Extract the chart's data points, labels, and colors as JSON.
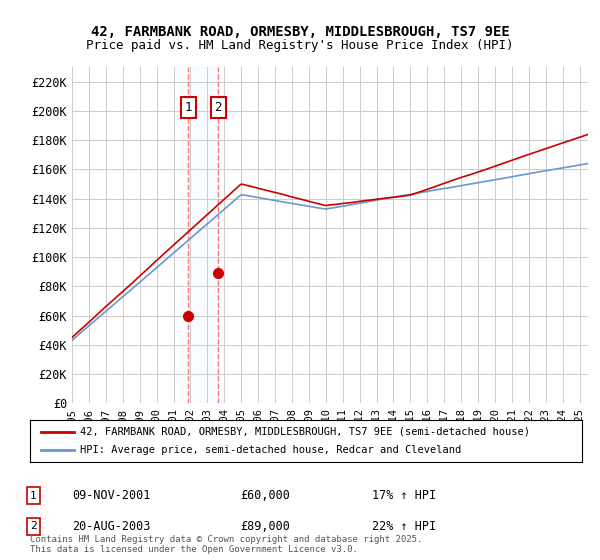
{
  "title_line1": "42, FARMBANK ROAD, ORMESBY, MIDDLESBROUGH, TS7 9EE",
  "title_line2": "Price paid vs. HM Land Registry's House Price Index (HPI)",
  "legend_line1": "42, FARMBANK ROAD, ORMESBY, MIDDLESBROUGH, TS7 9EE (semi-detached house)",
  "legend_line2": "HPI: Average price, semi-detached house, Redcar and Cleveland",
  "yticks": [
    0,
    20000,
    40000,
    60000,
    80000,
    100000,
    120000,
    140000,
    160000,
    180000,
    200000,
    220000
  ],
  "ytick_labels": [
    "£0",
    "£20K",
    "£40K",
    "£60K",
    "£80K",
    "£100K",
    "£120K",
    "£140K",
    "£160K",
    "£180K",
    "£200K",
    "£220K"
  ],
  "ymax": 230000,
  "sale1_date": 2001.86,
  "sale1_price": 60000,
  "sale1_label": "1",
  "sale1_date_str": "09-NOV-2001",
  "sale1_price_str": "£60,000",
  "sale1_hpi_str": "17% ↑ HPI",
  "sale2_date": 2003.64,
  "sale2_price": 89000,
  "sale2_label": "2",
  "sale2_date_str": "20-AUG-2003",
  "sale2_price_str": "£89,000",
  "sale2_hpi_str": "22% ↑ HPI",
  "hpi_color": "#6699cc",
  "sale_color": "#cc0000",
  "vline_color": "#ff6666",
  "grid_color": "#cccccc",
  "background_color": "#ffffff",
  "footer_text": "Contains HM Land Registry data © Crown copyright and database right 2025.\nThis data is licensed under the Open Government Licence v3.0.",
  "xmin": 1995,
  "xmax": 2025.5
}
